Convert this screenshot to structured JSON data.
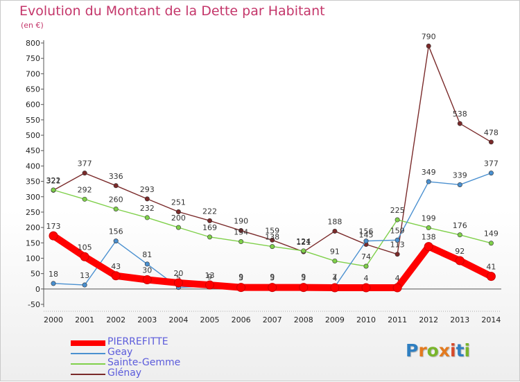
{
  "title": "Evolution du Montant de la Dette par Habitant",
  "unit_label": "(en €)",
  "logo": {
    "text": "Proxiti",
    "letters": [
      "P",
      "r",
      "o",
      "x",
      "i",
      "t",
      "i"
    ],
    "colors": [
      "#2f7fc1",
      "#e37a1f",
      "#79b52b",
      "#e37a1f",
      "#d64a2a",
      "#2f7fc1",
      "#79b52b"
    ]
  },
  "chart_data": {
    "type": "line",
    "title": "Evolution du Montant de la Dette par Habitant",
    "ylabel": "(en €)",
    "ylim": [
      -50,
      800
    ],
    "y_ticks": [
      -50,
      0,
      50,
      100,
      150,
      200,
      250,
      300,
      350,
      400,
      450,
      500,
      550,
      600,
      650,
      700,
      750,
      800
    ],
    "x": [
      2000,
      2001,
      2002,
      2003,
      2004,
      2005,
      2006,
      2007,
      2008,
      2009,
      2010,
      2011,
      2012,
      2013,
      2014
    ],
    "grid": false,
    "legend_position": "bottom-left",
    "series": [
      {
        "name": "PIERREFITTE",
        "color": "#ff0000",
        "values": [
          173,
          105,
          43,
          30,
          20,
          13,
          5,
          5,
          5,
          4,
          4,
          4,
          138,
          92,
          41
        ],
        "labels": [
          "173",
          "105",
          "43",
          "30",
          "20",
          "13",
          "5",
          "5",
          "5",
          "4",
          "4",
          "4",
          "138",
          "92",
          "41"
        ]
      },
      {
        "name": "Geay",
        "color": "#4a90d0",
        "values": [
          18,
          13,
          156,
          81,
          5,
          9,
          9,
          9,
          9,
          7,
          156,
          159,
          349,
          339,
          377
        ],
        "labels": [
          "18",
          "13",
          "156",
          "81",
          "5",
          "9",
          "9",
          "9",
          "9",
          "7",
          "156",
          "159",
          "349",
          "339",
          "377"
        ]
      },
      {
        "name": "Sainte-Gemme",
        "color": "#7fd04a",
        "values": [
          322,
          292,
          260,
          232,
          200,
          169,
          154,
          138,
          124,
          91,
          74,
          225,
          199,
          176,
          149
        ],
        "labels": [
          "322",
          "292",
          "260",
          "232",
          "200",
          "169",
          "154",
          "138",
          "124",
          "91",
          "74",
          "225",
          "199",
          "176",
          "149"
        ]
      },
      {
        "name": "Glénay",
        "color": "#7a2a2a",
        "values": [
          321,
          377,
          336,
          293,
          251,
          222,
          190,
          159,
          121,
          188,
          145,
          113,
          790,
          538,
          478
        ],
        "labels": [
          "321",
          "377",
          "336",
          "293",
          "251",
          "222",
          "190",
          "159",
          "121",
          "188",
          "145",
          "113",
          "790",
          "538",
          "478"
        ]
      }
    ]
  }
}
